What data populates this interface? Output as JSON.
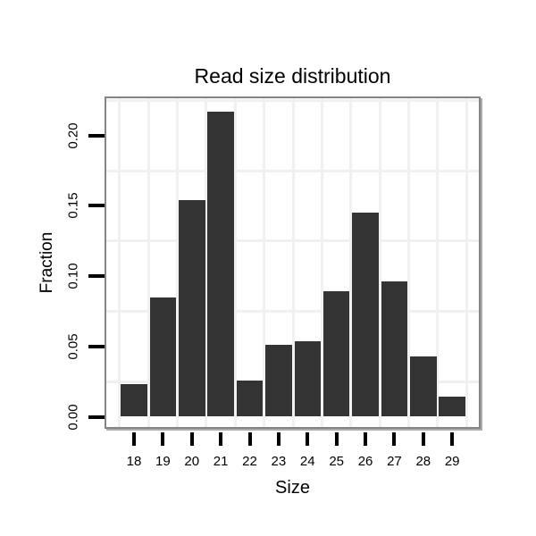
{
  "chart_data": {
    "type": "bar",
    "title": "Read size distribution",
    "xlabel": "Size",
    "ylabel": "Fraction",
    "categories": [
      "18",
      "19",
      "20",
      "21",
      "22",
      "23",
      "24",
      "25",
      "26",
      "27",
      "28",
      "29"
    ],
    "values": [
      0.023,
      0.085,
      0.154,
      0.217,
      0.026,
      0.051,
      0.054,
      0.089,
      0.145,
      0.096,
      0.043,
      0.014
    ],
    "yticks": {
      "labels": [
        "0.00",
        "0.05",
        "0.10",
        "0.15",
        "0.20"
      ],
      "values": [
        0,
        0.05,
        0.1,
        0.15,
        0.2
      ]
    },
    "minor_gridlines_y": [
      0.025,
      0.075,
      0.125,
      0.175,
      0.225
    ],
    "ylim": [
      0,
      0.2266
    ],
    "grid": "minor-only",
    "legend": "none",
    "colors": {
      "bar": "#333333",
      "grid": "#f0f0f0",
      "panel_border": "#848484",
      "panel_shadow": "#ababab",
      "background": "#ffffff",
      "text": "#000000",
      "tick": "#000000"
    }
  }
}
